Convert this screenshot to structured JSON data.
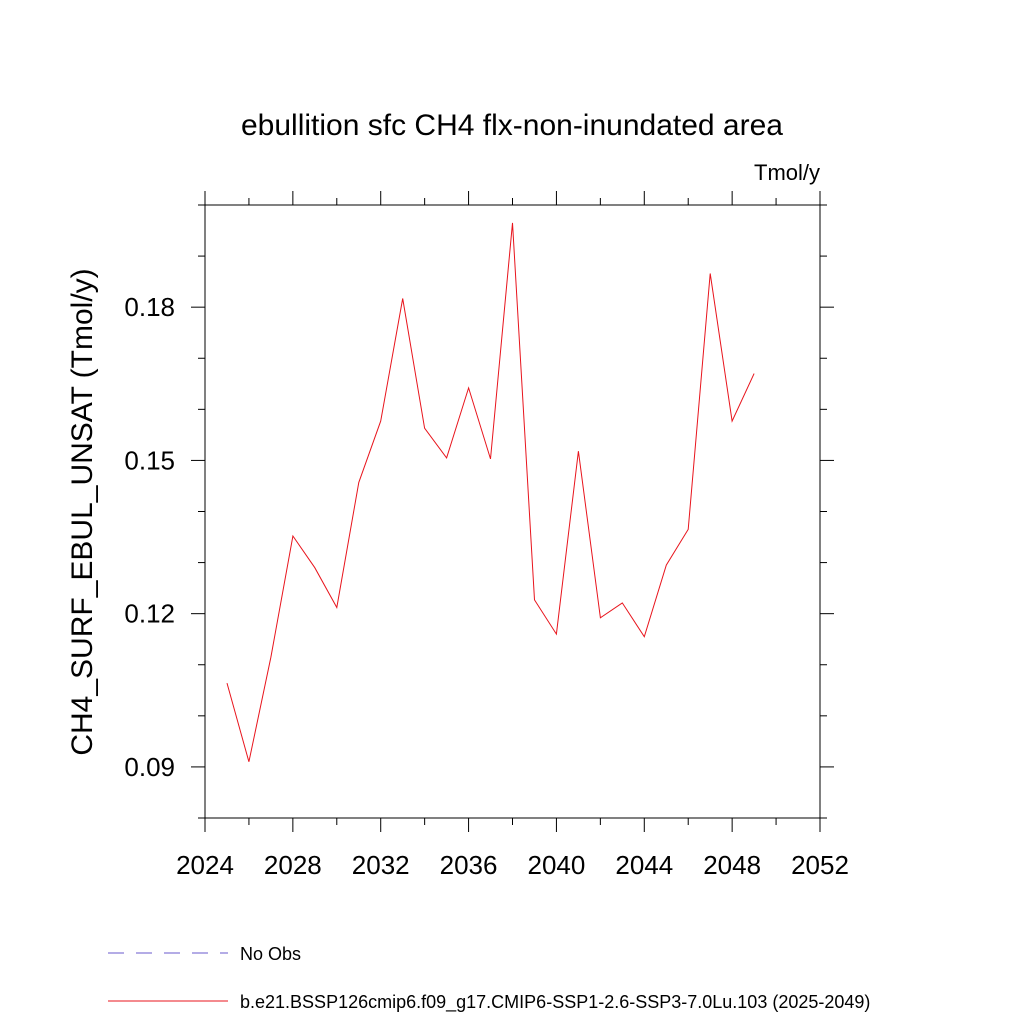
{
  "chart_data": {
    "type": "line",
    "title": "ebullition sfc CH4 flx-non-inundated area",
    "units_label": "Tmol/y",
    "ylabel": "CH4_SURF_EBUL_UNSAT  (Tmol/y)",
    "xlabel": "",
    "xlim": [
      2024,
      2052
    ],
    "ylim": [
      0.08,
      0.2
    ],
    "x_ticks": [
      2024,
      2028,
      2032,
      2036,
      2040,
      2044,
      2048,
      2052
    ],
    "x_tick_labels": [
      "2024",
      "2028",
      "2032",
      "2036",
      "2040",
      "2044",
      "2048",
      "2052"
    ],
    "y_ticks": [
      0.09,
      0.12,
      0.15,
      0.18
    ],
    "y_tick_labels": [
      "0.09",
      "0.12",
      "0.15",
      "0.18"
    ],
    "grid": false,
    "legend_position": "bottom",
    "series": [
      {
        "name": "b.e21.BSSP126cmip6.f09_g17.CMIP6-SSP1-2.6-SSP3-7.0Lu.103 (2025-2049)",
        "color": "#e8141c",
        "style": "solid",
        "x": [
          2025,
          2026,
          2027,
          2028,
          2029,
          2030,
          2031,
          2032,
          2033,
          2034,
          2035,
          2036,
          2037,
          2038,
          2039,
          2040,
          2041,
          2042,
          2043,
          2044,
          2045,
          2046,
          2047,
          2048,
          2049
        ],
        "values": [
          0.1064,
          0.091,
          0.1115,
          0.1352,
          0.129,
          0.1212,
          0.1457,
          0.1577,
          0.1817,
          0.1563,
          0.1505,
          0.1642,
          0.1503,
          0.1965,
          0.1227,
          0.116,
          0.1518,
          0.1192,
          0.1221,
          0.1155,
          0.1295,
          0.1365,
          0.1866,
          0.1577,
          0.167
        ]
      }
    ],
    "legend": [
      {
        "label": "No Obs",
        "color": "#6a5acd",
        "style": "dashed"
      },
      {
        "label": "b.e21.BSSP126cmip6.f09_g17.CMIP6-SSP1-2.6-SSP3-7.0Lu.103 (2025-2049)",
        "color": "#e8141c",
        "style": "solid"
      }
    ]
  }
}
